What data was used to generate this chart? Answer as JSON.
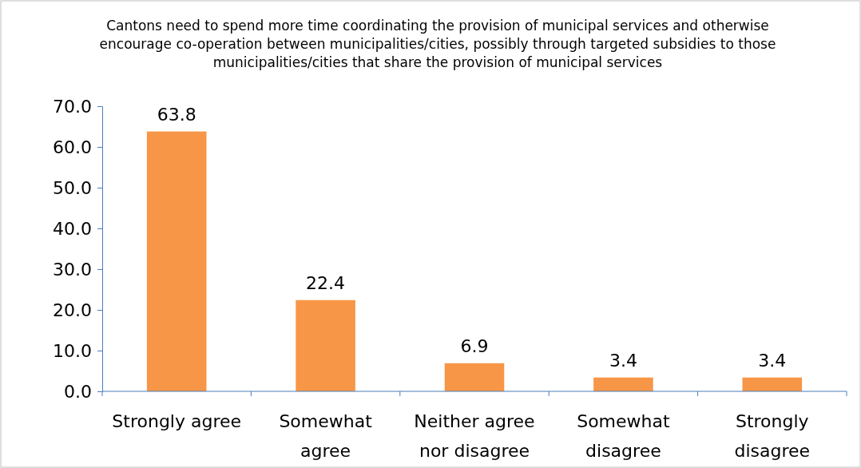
{
  "chart_data": {
    "type": "bar",
    "title": "Cantons need to spend more time coordinating the provision of municipal services and otherwise encourage co-operation between municipalities/cities, possibly through targeted subsidies to those municipalities/cities that share the provision of municipal services",
    "categories": [
      "Strongly agree",
      "Somewhat agree",
      "Neither agree nor disagree",
      "Somewhat disagree",
      "Strongly disagree"
    ],
    "values": [
      63.8,
      22.4,
      6.9,
      3.4,
      3.4
    ],
    "color": "#f79646",
    "ylim": [
      0,
      70
    ],
    "yticks": [
      {
        "value": 0,
        "label": "0.0"
      },
      {
        "value": 10,
        "label": "10.0"
      },
      {
        "value": 20,
        "label": "20.0"
      },
      {
        "value": 30,
        "label": "30.0"
      },
      {
        "value": 40,
        "label": "40.0"
      },
      {
        "value": 50,
        "label": "50.0"
      },
      {
        "value": 60,
        "label": "60.0"
      },
      {
        "value": 70,
        "label": "70.0"
      }
    ],
    "data_labels": true
  }
}
